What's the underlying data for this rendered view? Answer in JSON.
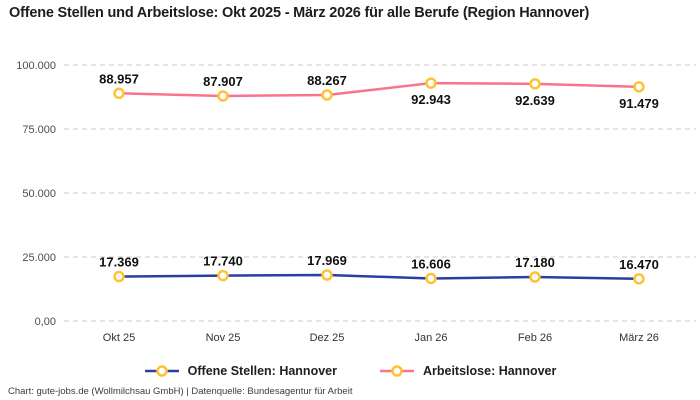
{
  "header": {
    "title": "Offene Stellen und Arbeitslose: Okt 2025 - März 2026 für alle Berufe (Region Hannover)"
  },
  "chart_data": {
    "type": "line",
    "title": "Offene Stellen und Arbeitslose: Okt 2025 - März 2026 für alle Berufe (Region Hannover)",
    "categories": [
      "Okt 25",
      "Nov 25",
      "Dez 25",
      "Jan 26",
      "Feb 26",
      "März 26"
    ],
    "series": [
      {
        "name": "Offene Stellen: Hannover",
        "color": "#2b3f9e",
        "values": [
          17369,
          17740,
          17969,
          16606,
          17180,
          16470
        ],
        "value_labels": [
          "17.369",
          "17.740",
          "17.969",
          "16.606",
          "17.180",
          "16.470"
        ],
        "label_position": [
          "above",
          "above",
          "above",
          "above",
          "above",
          "above"
        ]
      },
      {
        "name": "Arbeitslose: Hannover",
        "color": "#f9738f",
        "values": [
          88957,
          87907,
          88267,
          92943,
          92639,
          91479
        ],
        "value_labels": [
          "88.957",
          "87.907",
          "88.267",
          "92.943",
          "92.639",
          "91.479"
        ],
        "label_position": [
          "above",
          "above",
          "above",
          "below",
          "below",
          "below"
        ]
      }
    ],
    "y_ticks": [
      {
        "value": 0,
        "label": "0,00"
      },
      {
        "value": 25000,
        "label": "25.000"
      },
      {
        "value": 50000,
        "label": "50.000"
      },
      {
        "value": 75000,
        "label": "75.000"
      },
      {
        "value": 100000,
        "label": "100.000"
      }
    ],
    "ylim": [
      0,
      100000
    ],
    "marker": {
      "fill": "#ffffff",
      "stroke": "#ffc233"
    },
    "grid": {
      "horizontal": true,
      "style": "dashed",
      "color": "#c9c9c9"
    },
    "legend_position": "bottom"
  },
  "footer": {
    "credit": "Chart: gute-jobs.de (Wollmilchsau GmbH) | Datenquelle: Bundesagentur für Arbeit"
  }
}
